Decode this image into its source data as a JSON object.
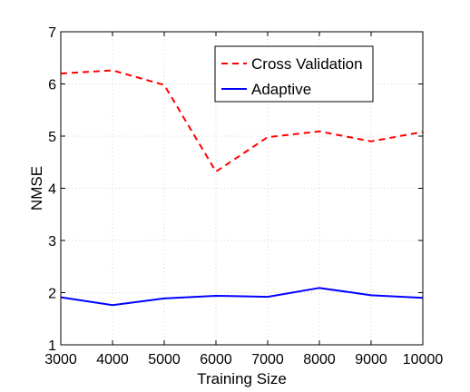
{
  "chart_data": {
    "type": "line",
    "title": "",
    "xlabel": "Training Size",
    "ylabel": "NMSE",
    "x": [
      3000,
      4000,
      5000,
      6000,
      7000,
      8000,
      9000,
      10000
    ],
    "xlim": [
      3000,
      10000
    ],
    "ylim": [
      1,
      7
    ],
    "xticks": [
      "3000",
      "4000",
      "5000",
      "6000",
      "7000",
      "8000",
      "9000",
      "10000"
    ],
    "yticks": [
      "1",
      "2",
      "3",
      "4",
      "5",
      "6",
      "7"
    ],
    "grid": true,
    "legend_position": "top-right",
    "series": [
      {
        "name": "Cross Validation",
        "color": "#ff0000",
        "line_style": "dashed",
        "values": [
          6.2,
          6.26,
          5.98,
          4.32,
          4.98,
          5.09,
          4.9,
          5.08
        ]
      },
      {
        "name": "Adaptive",
        "color": "#0000ff",
        "line_style": "solid",
        "values": [
          1.91,
          1.76,
          1.89,
          1.94,
          1.92,
          2.09,
          1.95,
          1.9
        ]
      }
    ]
  }
}
